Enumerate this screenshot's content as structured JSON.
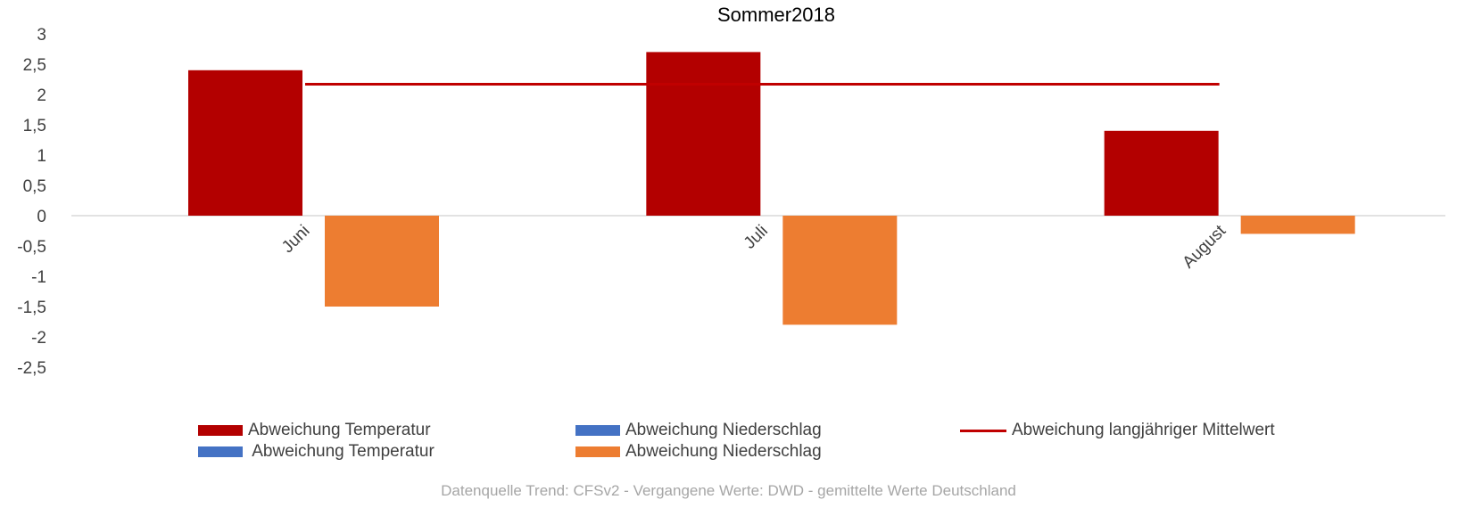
{
  "chart_data": {
    "type": "bar",
    "title": "Sommer2018",
    "categories": [
      "Juni",
      "Juli",
      "August"
    ],
    "series": [
      {
        "name": "Abweichung Temperatur",
        "kind": "bar",
        "color": "#b30000",
        "values": [
          2.4,
          2.7,
          1.4
        ]
      },
      {
        "name": "Abweichung Niederschlag",
        "kind": "bar",
        "color": "#ed7d31",
        "values": [
          -1.5,
          -1.8,
          -0.3
        ]
      },
      {
        "name": "Abweichung langjähriger Mittelwert",
        "kind": "line",
        "color": "#c00000",
        "values": [
          2.17,
          2.17,
          2.17
        ]
      }
    ],
    "yticks": [
      "3",
      "2,5",
      "2",
      "1,5",
      "1",
      "0,5",
      "0",
      "-0,5",
      "-1",
      "-1,5",
      "-2",
      "-2,5"
    ],
    "ylim": [
      -2.5,
      3
    ],
    "grid": false,
    "legend_position": "bottom"
  },
  "legend": [
    {
      "label": "Abweichung Temperatur",
      "type": "bar",
      "color": "#b30000"
    },
    {
      "label": "Abweichung Niederschlag",
      "type": "bar",
      "color": "#4472c4"
    },
    {
      "label": "Abweichung langjähriger Mittelwert",
      "type": "line",
      "color": "#c00000"
    },
    {
      "label": " Abweichung Temperatur",
      "type": "bar",
      "color": "#4472c4"
    },
    {
      "label": "Abweichung Niederschlag",
      "type": "bar",
      "color": "#ed7d31"
    }
  ],
  "source": "Datenquelle Trend: CFSv2 - Vergangene Werte: DWD - gemittelte Werte Deutschland"
}
